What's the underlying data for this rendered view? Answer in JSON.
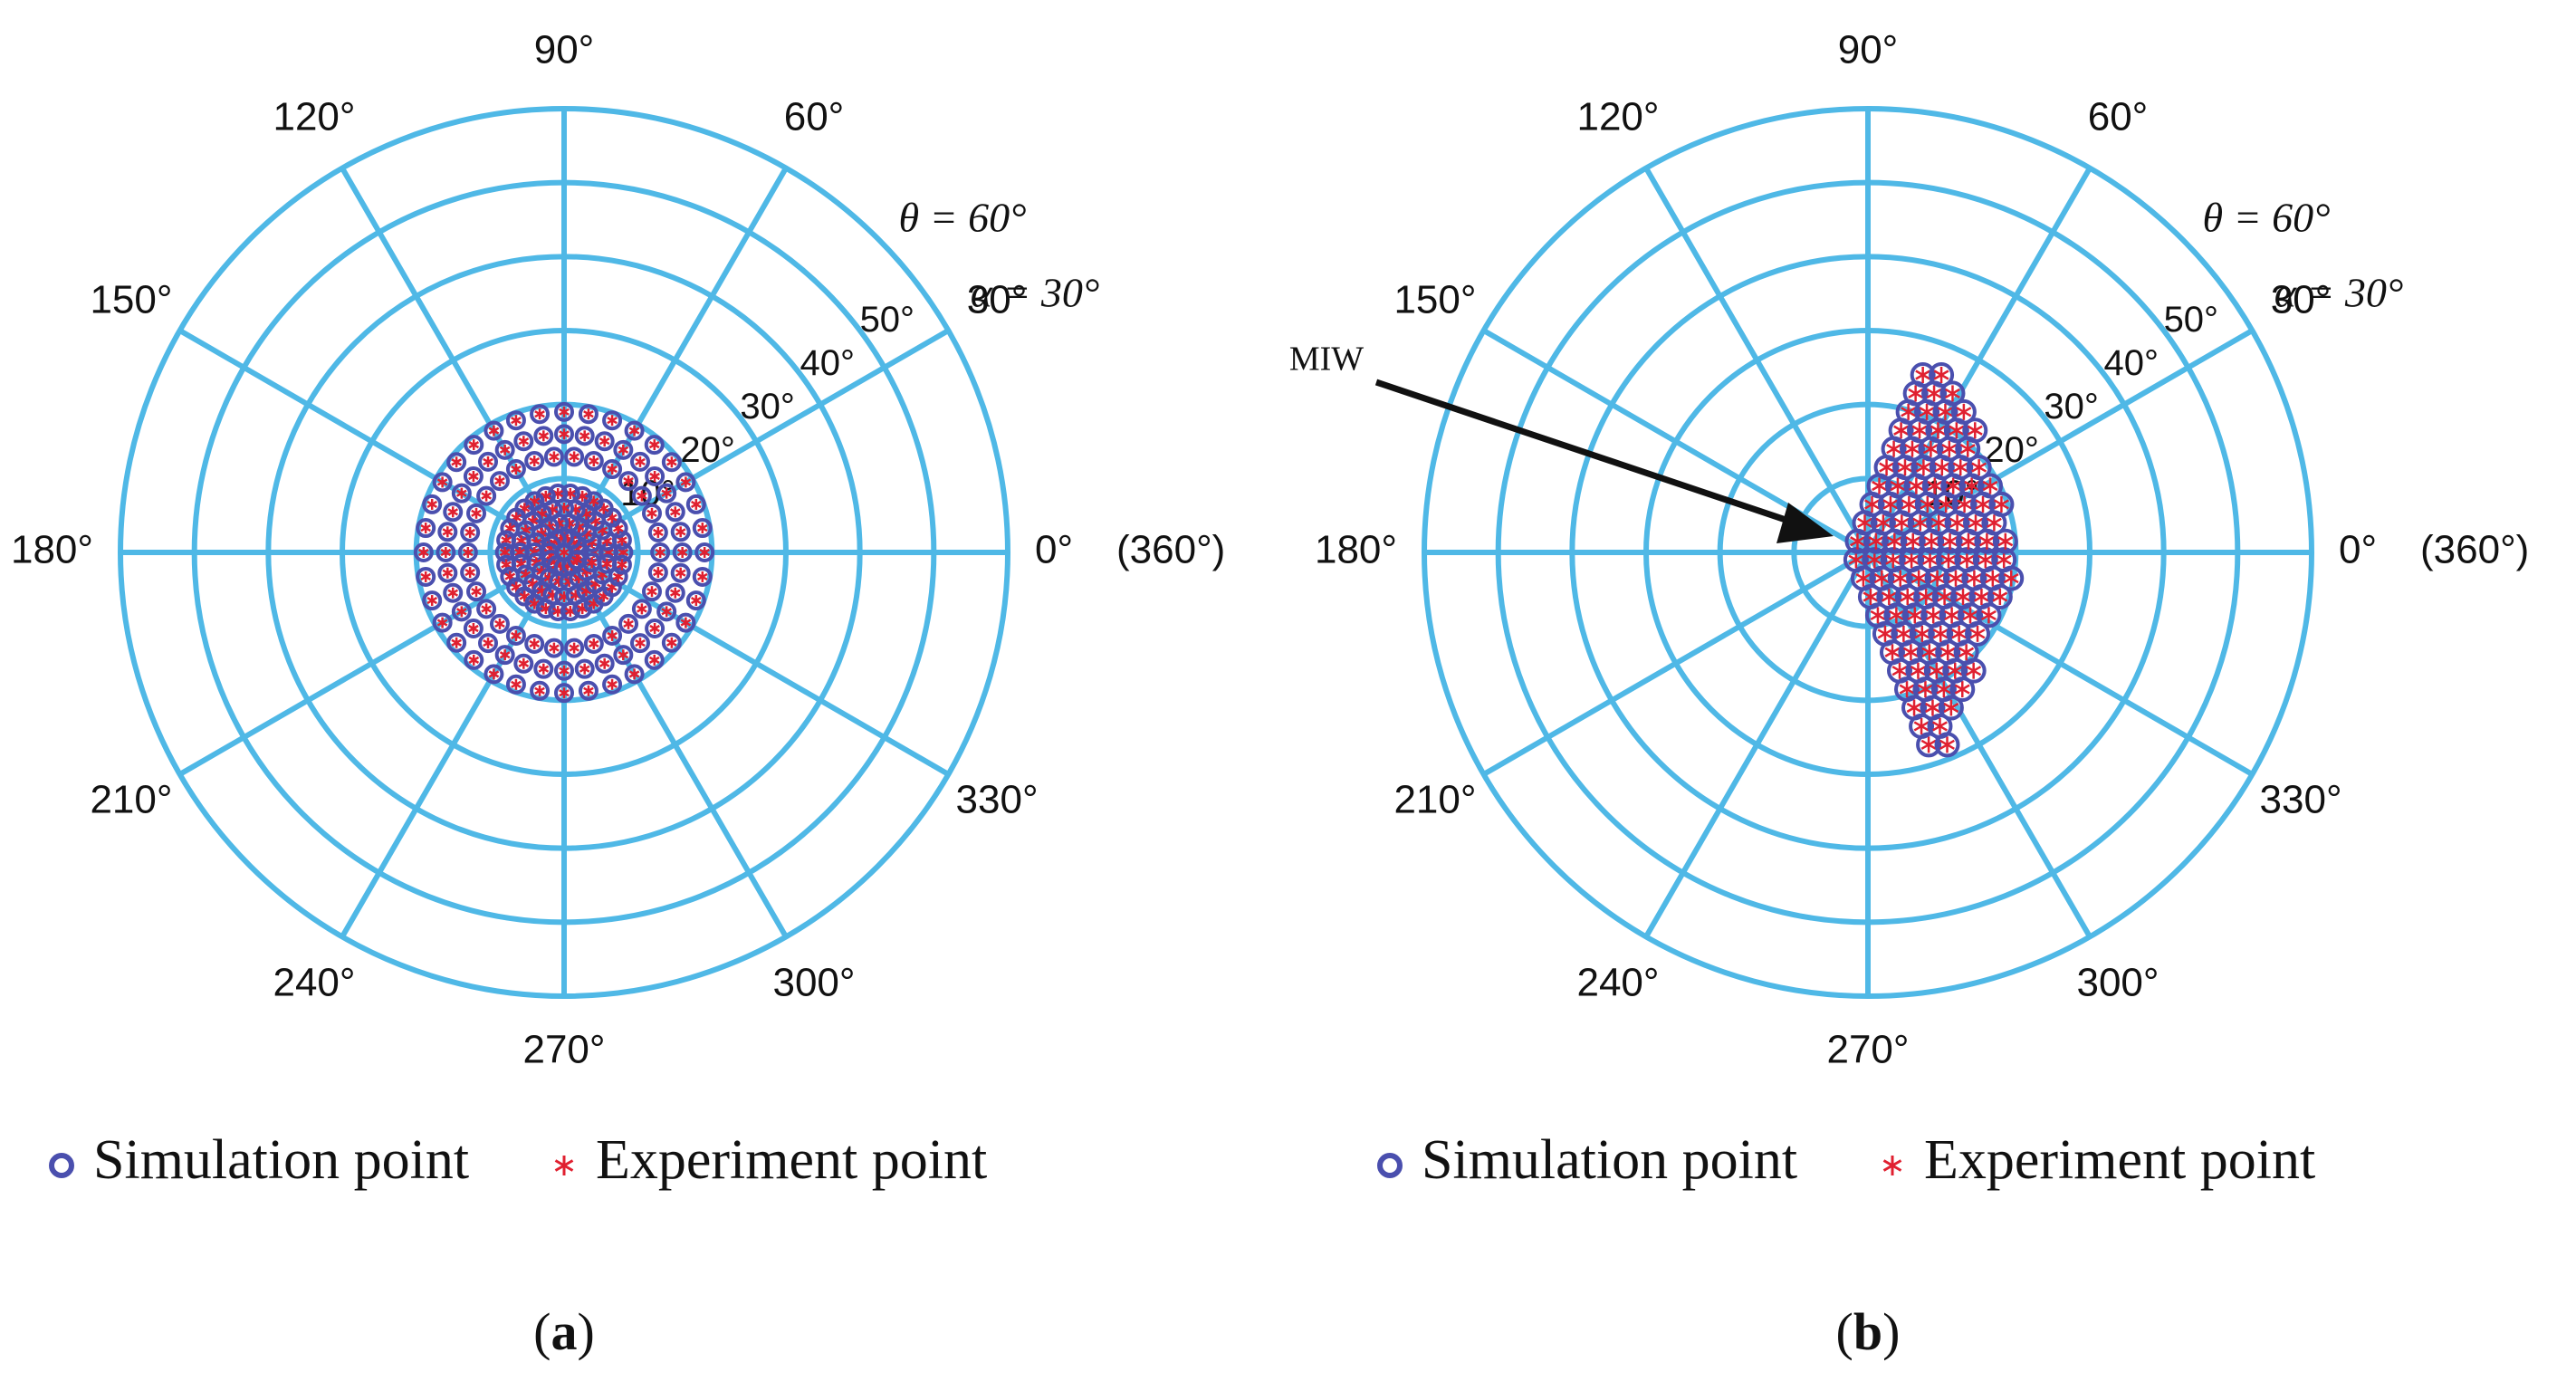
{
  "chart_data": [
    {
      "type": "scatter",
      "subplot": "a",
      "caption_label": "a",
      "coordinate_system": "polar",
      "angle_tick_labels": [
        "0°",
        "30°",
        "60°",
        "90°",
        "120°",
        "150°",
        "180°",
        "210°",
        "240°",
        "270°",
        "300°",
        "330°"
      ],
      "angle_extra_label": "(360°)",
      "radial_tick_labels": [
        "10°",
        "20°",
        "30°",
        "40°",
        "50°"
      ],
      "rlim": [
        0,
        60
      ],
      "annotations": [
        "θ = 60°",
        "α = 30°"
      ],
      "series": [
        {
          "name": "Simulation point",
          "marker": "circle",
          "color": "#4a4fae",
          "rings": [
            {
              "r": 0,
              "count": 1
            },
            {
              "r": 2,
              "count": 12
            },
            {
              "r": 4,
              "count": 18
            },
            {
              "r": 6,
              "count": 24
            },
            {
              "r": 8,
              "count": 30
            },
            {
              "r": 13,
              "count": 30
            },
            {
              "r": 16,
              "count": 36
            },
            {
              "r": 19,
              "count": 36
            }
          ]
        },
        {
          "name": "Experiment point",
          "marker": "asterisk",
          "color": "#e02030",
          "same_as": "Simulation point"
        }
      ],
      "legend": [
        "Simulation point",
        "Experiment point"
      ]
    },
    {
      "type": "scatter",
      "subplot": "b",
      "caption_label": "b",
      "coordinate_system": "polar",
      "angle_tick_labels": [
        "0°",
        "30°",
        "60°",
        "90°",
        "120°",
        "150°",
        "180°",
        "210°",
        "240°",
        "270°",
        "300°",
        "330°"
      ],
      "angle_extra_label": "(360°)",
      "radial_tick_labels": [
        "10°",
        "20°",
        "30°",
        "40°",
        "50°"
      ],
      "rlim": [
        0,
        60
      ],
      "annotations": [
        "θ = 60°",
        "α = 30°"
      ],
      "arrow_label": "MIW",
      "grid_step_deg": 2.5,
      "region": {
        "center_x_deg": 10,
        "half_width_deg": 11,
        "half_height_deg": 26,
        "min_x_deg": -2
      },
      "series": [
        {
          "name": "Simulation point",
          "marker": "circle",
          "color": "#4a4fae"
        },
        {
          "name": "Experiment point",
          "marker": "asterisk",
          "color": "#e02030",
          "same_as": "Simulation point"
        }
      ],
      "legend": [
        "Simulation point",
        "Experiment point"
      ]
    }
  ]
}
